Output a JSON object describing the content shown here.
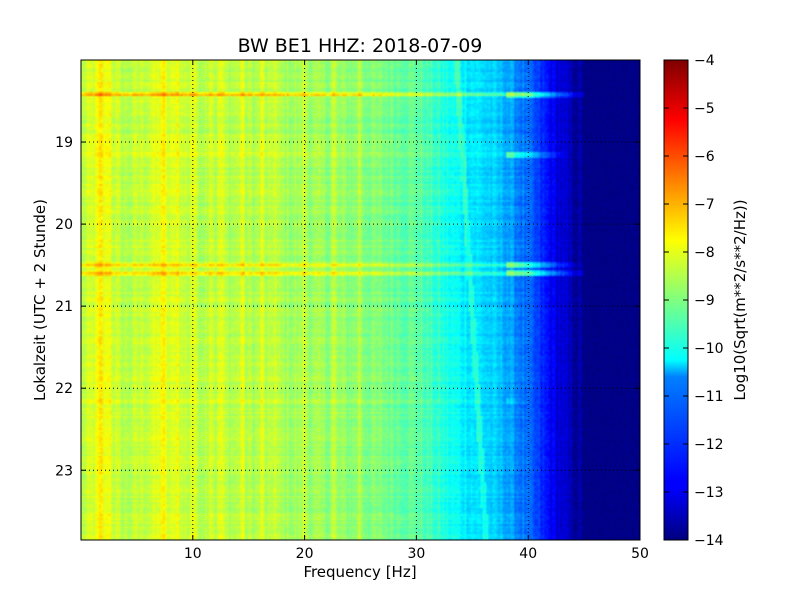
{
  "chart_data": {
    "type": "heatmap",
    "title": "BW BE1 HHZ: 2018-07-09",
    "xlabel": "Frequency [Hz]",
    "ylabel": "Lokalzeit (UTC + 2 Stunde)",
    "xlim": [
      0,
      50
    ],
    "ylim": [
      18.0,
      23.85
    ],
    "y_inverted": true,
    "x_ticks": [
      10,
      20,
      30,
      40,
      50
    ],
    "y_ticks": [
      19,
      20,
      21,
      22,
      23
    ],
    "grid": true,
    "colormap": "jet",
    "colorbar": {
      "label": "Log10(Sqrt(m**2/s**2/Hz))",
      "range": [
        -14,
        -4
      ],
      "ticks": [
        -4,
        -5,
        -6,
        -7,
        -8,
        -9,
        -10,
        -11,
        -12,
        -13,
        -14
      ]
    },
    "spectral_profile": [
      {
        "freq": 0,
        "value": -8.5
      },
      {
        "freq": 1.5,
        "value": -8.0
      },
      {
        "freq": 4,
        "value": -8.5
      },
      {
        "freq": 7,
        "value": -8.1
      },
      {
        "freq": 10,
        "value": -8.4
      },
      {
        "freq": 15,
        "value": -8.5
      },
      {
        "freq": 20,
        "value": -8.7
      },
      {
        "freq": 25,
        "value": -8.9
      },
      {
        "freq": 30,
        "value": -9.3
      },
      {
        "freq": 33,
        "value": -10.1
      },
      {
        "freq": 36,
        "value": -10.6
      },
      {
        "freq": 38,
        "value": -11.0
      },
      {
        "freq": 40,
        "value": -11.8
      },
      {
        "freq": 42,
        "value": -12.8
      },
      {
        "freq": 44,
        "value": -13.6
      },
      {
        "freq": 46,
        "value": -14.0
      },
      {
        "freq": 50,
        "value": -14.0
      }
    ],
    "bright_vertical_lines_hz": [
      1.8,
      2.5,
      7.3,
      8.6,
      10.0,
      11.6,
      12.5,
      14.4,
      16.2,
      17.3,
      20.0,
      22.6,
      24.9
    ],
    "horizontal_events": [
      {
        "time": 18.42,
        "extent_hz": 46,
        "boost": 1.5
      },
      {
        "time": 19.15,
        "extent_hz": 44,
        "boost": 0.5
      },
      {
        "time": 20.5,
        "extent_hz": 45,
        "boost": 0.9
      },
      {
        "time": 20.6,
        "extent_hz": 46,
        "boost": 1.2
      },
      {
        "time": 22.15,
        "extent_hz": 40,
        "boost": 0.5
      }
    ]
  }
}
